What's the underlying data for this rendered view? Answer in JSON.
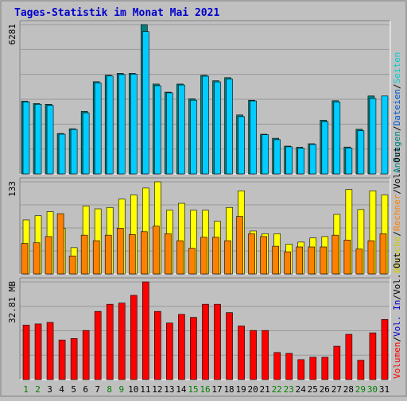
{
  "chart_data": {
    "type": "bar",
    "title": "Tages-Statistik im Monat Mai 2021",
    "categories": [
      "1",
      "2",
      "3",
      "4",
      "5",
      "6",
      "7",
      "8",
      "9",
      "10",
      "11",
      "12",
      "13",
      "14",
      "15",
      "16",
      "17",
      "18",
      "19",
      "20",
      "21",
      "22",
      "23",
      "24",
      "25",
      "26",
      "27",
      "28",
      "29",
      "30",
      "31"
    ],
    "weekend_days": [
      "1",
      "2",
      "8",
      "9",
      "15",
      "16",
      "22",
      "23",
      "29",
      "30"
    ],
    "colors": {
      "title": "#0000cc",
      "panel_bg": "#c0c0c0",
      "grid": "#999999",
      "anfragen": "#008080",
      "dateien": "#00ccff",
      "seiten": "#00ffff",
      "besuche": "#ffff00",
      "rechner": "#ff8000",
      "volumen": "#ff0000",
      "weekend_label": "#008000",
      "weekday_label": "#000000"
    },
    "panels": [
      {
        "max_label": "6281",
        "ylim": [
          0,
          6281
        ],
        "legend": [
          {
            "label": "Anfragen",
            "color": "#008080"
          },
          {
            "label": "/",
            "color": "#000000"
          },
          {
            "label": "Dateien",
            "color": "#0055cc"
          },
          {
            "label": "/",
            "color": "#000000"
          },
          {
            "label": "Seiten",
            "color": "#00cccc"
          }
        ],
        "series": [
          {
            "name": "Anfragen",
            "values": [
              3060,
              2960,
              2930,
              1700,
              1900,
              2630,
              3880,
              4150,
              4230,
              4230,
              6281,
              3780,
              3440,
              3780,
              3160,
              4150,
              3920,
              4050,
              2480,
              3100,
              1670,
              1500,
              1170,
              1120,
              1270,
              2260,
              3080,
              1130,
              1880,
              3280,
              1
            ]
          },
          {
            "name": "Dateien",
            "values": [
              3030,
              2930,
              2880,
              1670,
              1870,
              2570,
              3830,
              4120,
              4180,
              4200,
              5990,
              3710,
              3410,
              3740,
              3100,
              4110,
              3870,
              3990,
              2410,
              3070,
              1650,
              1440,
              1140,
              1080,
              1240,
              2200,
              3030,
              1090,
              1820,
              3170,
              3280
            ]
          }
        ]
      },
      {
        "max_label": "133",
        "ylim": [
          0,
          133
        ],
        "legend": [
          {
            "label": "Besuche",
            "color": "#cccc00"
          },
          {
            "label": "/",
            "color": "#000000"
          },
          {
            "label": "Rechner",
            "color": "#ff8000"
          },
          {
            "label": "/",
            "color": "#000000"
          },
          {
            "label": "Vol. Out",
            "color": "#000000"
          }
        ],
        "series": [
          {
            "name": "Besuche",
            "values": [
              78,
              84,
              90,
              66,
              38,
              98,
              94,
              96,
              108,
              114,
              124,
              133,
              92,
              102,
              92,
              92,
              76,
              96,
              120,
              62,
              58,
              58,
              43,
              46,
              52,
              54,
              86,
              122,
              93,
              120,
              114
            ]
          },
          {
            "name": "Rechner",
            "values": [
              44,
              45,
              54,
              87,
              26,
              56,
              48,
              56,
              66,
              57,
              61,
              69,
              58,
              48,
              37,
              53,
              53,
              48,
              83,
              58,
              54,
              40,
              32,
              39,
              39,
              39,
              56,
              49,
              36,
              48,
              58
            ]
          }
        ]
      },
      {
        "max_label": "32.81 MB",
        "ylim": [
          0,
          32.81
        ],
        "legend": [
          {
            "label": "Volumen",
            "color": "#ff0000"
          },
          {
            "label": "/",
            "color": "#000000"
          },
          {
            "label": "Vol. In",
            "color": "#0000cc"
          },
          {
            "label": "/",
            "color": "#000000"
          },
          {
            "label": "Vol. Out",
            "color": "#000000"
          }
        ],
        "series": [
          {
            "name": "Volumen",
            "values": [
              18.3,
              18.7,
              19.2,
              13.3,
              13.8,
              16.5,
              22.9,
              25.3,
              25.7,
              28.3,
              32.81,
              22.9,
              19.0,
              21.9,
              20.9,
              25.3,
              25.3,
              22.5,
              18.0,
              16.5,
              16.5,
              9.1,
              8.8,
              6.7,
              7.5,
              7.5,
              11.2,
              15.2,
              6.5,
              15.7,
              20.2
            ]
          }
        ]
      }
    ]
  }
}
